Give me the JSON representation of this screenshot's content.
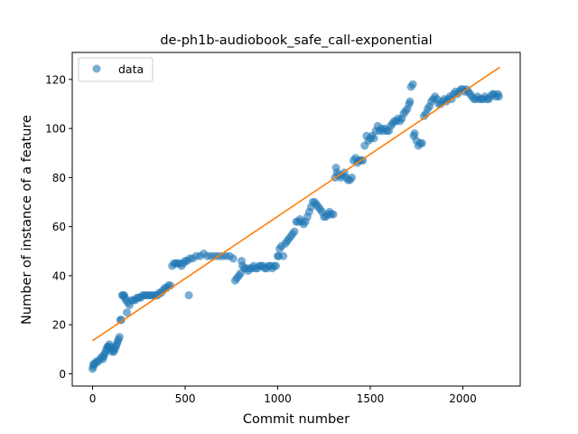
{
  "chart_data": {
    "type": "scatter",
    "title": "de-ph1b-audiobook_safe_call-exponential",
    "xlabel": "Commit number",
    "ylabel": "Number of instance of a feature",
    "xlim": [
      -110,
      2310
    ],
    "ylim": [
      -5,
      131
    ],
    "xticks": [
      0,
      500,
      1000,
      1500,
      2000
    ],
    "yticks": [
      0,
      20,
      40,
      60,
      80,
      100,
      120
    ],
    "grid": false,
    "legend": {
      "position": "upper-left",
      "entries": [
        "data"
      ]
    },
    "series": [
      {
        "name": "data",
        "kind": "scatter",
        "color": "#1f77b4",
        "points": [
          [
            0,
            2
          ],
          [
            3,
            3
          ],
          [
            5,
            4
          ],
          [
            12,
            4
          ],
          [
            20,
            5
          ],
          [
            30,
            5
          ],
          [
            40,
            6
          ],
          [
            50,
            7
          ],
          [
            55,
            6
          ],
          [
            60,
            7
          ],
          [
            65,
            8
          ],
          [
            70,
            9
          ],
          [
            75,
            10
          ],
          [
            80,
            11
          ],
          [
            85,
            11
          ],
          [
            90,
            12
          ],
          [
            95,
            11
          ],
          [
            100,
            10
          ],
          [
            105,
            9
          ],
          [
            110,
            10
          ],
          [
            115,
            9
          ],
          [
            120,
            10
          ],
          [
            125,
            11
          ],
          [
            130,
            12
          ],
          [
            135,
            13
          ],
          [
            140,
            14
          ],
          [
            145,
            15
          ],
          [
            150,
            22
          ],
          [
            155,
            22
          ],
          [
            160,
            32
          ],
          [
            165,
            32
          ],
          [
            170,
            32
          ],
          [
            175,
            31
          ],
          [
            180,
            30
          ],
          [
            185,
            25
          ],
          [
            190,
            29
          ],
          [
            200,
            28
          ],
          [
            210,
            30
          ],
          [
            220,
            30
          ],
          [
            230,
            30
          ],
          [
            240,
            31
          ],
          [
            250,
            31
          ],
          [
            260,
            31
          ],
          [
            270,
            32
          ],
          [
            280,
            32
          ],
          [
            290,
            32
          ],
          [
            300,
            32
          ],
          [
            310,
            32
          ],
          [
            320,
            32
          ],
          [
            330,
            32
          ],
          [
            340,
            32
          ],
          [
            350,
            32
          ],
          [
            360,
            33
          ],
          [
            370,
            33
          ],
          [
            380,
            34
          ],
          [
            390,
            35
          ],
          [
            400,
            35
          ],
          [
            410,
            36
          ],
          [
            420,
            36
          ],
          [
            430,
            44
          ],
          [
            440,
            45
          ],
          [
            450,
            45
          ],
          [
            460,
            45
          ],
          [
            470,
            45
          ],
          [
            480,
            44
          ],
          [
            490,
            45
          ],
          [
            500,
            46
          ],
          [
            510,
            46
          ],
          [
            520,
            32
          ],
          [
            525,
            47
          ],
          [
            540,
            47
          ],
          [
            560,
            48
          ],
          [
            580,
            48
          ],
          [
            600,
            49
          ],
          [
            620,
            48
          ],
          [
            640,
            48
          ],
          [
            660,
            48
          ],
          [
            680,
            48
          ],
          [
            700,
            48
          ],
          [
            720,
            48
          ],
          [
            740,
            48
          ],
          [
            760,
            47
          ],
          [
            770,
            38
          ],
          [
            780,
            39
          ],
          [
            790,
            40
          ],
          [
            800,
            41
          ],
          [
            805,
            46
          ],
          [
            810,
            44
          ],
          [
            820,
            43
          ],
          [
            830,
            43
          ],
          [
            840,
            42
          ],
          [
            850,
            43
          ],
          [
            860,
            43
          ],
          [
            870,
            44
          ],
          [
            880,
            43
          ],
          [
            890,
            43
          ],
          [
            900,
            44
          ],
          [
            910,
            44
          ],
          [
            920,
            44
          ],
          [
            930,
            43
          ],
          [
            940,
            43
          ],
          [
            950,
            44
          ],
          [
            960,
            44
          ],
          [
            970,
            43
          ],
          [
            980,
            44
          ],
          [
            990,
            44
          ],
          [
            1000,
            48
          ],
          [
            1005,
            48
          ],
          [
            1010,
            51
          ],
          [
            1020,
            52
          ],
          [
            1030,
            48
          ],
          [
            1040,
            53
          ],
          [
            1050,
            54
          ],
          [
            1060,
            55
          ],
          [
            1070,
            56
          ],
          [
            1080,
            57
          ],
          [
            1090,
            58
          ],
          [
            1100,
            62
          ],
          [
            1110,
            62
          ],
          [
            1120,
            63
          ],
          [
            1130,
            62
          ],
          [
            1140,
            61
          ],
          [
            1150,
            62
          ],
          [
            1160,
            64
          ],
          [
            1170,
            66
          ],
          [
            1180,
            68
          ],
          [
            1190,
            70
          ],
          [
            1200,
            70
          ],
          [
            1210,
            69
          ],
          [
            1220,
            68
          ],
          [
            1230,
            67
          ],
          [
            1240,
            66
          ],
          [
            1250,
            64
          ],
          [
            1260,
            64
          ],
          [
            1270,
            65
          ],
          [
            1280,
            66
          ],
          [
            1290,
            65
          ],
          [
            1300,
            65
          ],
          [
            1310,
            80
          ],
          [
            1315,
            84
          ],
          [
            1320,
            82
          ],
          [
            1330,
            81
          ],
          [
            1340,
            80
          ],
          [
            1350,
            81
          ],
          [
            1360,
            82
          ],
          [
            1370,
            80
          ],
          [
            1380,
            79
          ],
          [
            1390,
            79
          ],
          [
            1400,
            80
          ],
          [
            1410,
            87
          ],
          [
            1420,
            88
          ],
          [
            1430,
            86
          ],
          [
            1440,
            87
          ],
          [
            1450,
            87
          ],
          [
            1460,
            87
          ],
          [
            1470,
            93
          ],
          [
            1480,
            97
          ],
          [
            1490,
            95
          ],
          [
            1500,
            96
          ],
          [
            1510,
            97
          ],
          [
            1520,
            96
          ],
          [
            1530,
            99
          ],
          [
            1540,
            101
          ],
          [
            1550,
            99
          ],
          [
            1560,
            100
          ],
          [
            1570,
            99
          ],
          [
            1580,
            100
          ],
          [
            1590,
            99
          ],
          [
            1600,
            99
          ],
          [
            1610,
            101
          ],
          [
            1620,
            102
          ],
          [
            1630,
            103
          ],
          [
            1640,
            103
          ],
          [
            1650,
            104
          ],
          [
            1660,
            103
          ],
          [
            1670,
            104
          ],
          [
            1680,
            106
          ],
          [
            1690,
            107
          ],
          [
            1700,
            108
          ],
          [
            1710,
            110
          ],
          [
            1715,
            111
          ],
          [
            1720,
            117
          ],
          [
            1730,
            118
          ],
          [
            1735,
            97
          ],
          [
            1740,
            98
          ],
          [
            1750,
            95
          ],
          [
            1760,
            93
          ],
          [
            1770,
            94
          ],
          [
            1780,
            94
          ],
          [
            1790,
            105
          ],
          [
            1800,
            106
          ],
          [
            1810,
            108
          ],
          [
            1820,
            109
          ],
          [
            1830,
            111
          ],
          [
            1840,
            112
          ],
          [
            1850,
            113
          ],
          [
            1860,
            112
          ],
          [
            1870,
            110
          ],
          [
            1880,
            110
          ],
          [
            1890,
            111
          ],
          [
            1900,
            112
          ],
          [
            1910,
            111
          ],
          [
            1920,
            112
          ],
          [
            1930,
            113
          ],
          [
            1940,
            112
          ],
          [
            1950,
            114
          ],
          [
            1960,
            115
          ],
          [
            1970,
            114
          ],
          [
            1980,
            115
          ],
          [
            1990,
            116
          ],
          [
            2000,
            116
          ],
          [
            2010,
            115
          ],
          [
            2020,
            116
          ],
          [
            2030,
            115
          ],
          [
            2040,
            114
          ],
          [
            2050,
            113
          ],
          [
            2060,
            112
          ],
          [
            2070,
            112
          ],
          [
            2080,
            113
          ],
          [
            2090,
            112
          ],
          [
            2100,
            112
          ],
          [
            2110,
            112
          ],
          [
            2120,
            113
          ],
          [
            2130,
            112
          ],
          [
            2140,
            112
          ],
          [
            2150,
            113
          ],
          [
            2160,
            114
          ],
          [
            2170,
            114
          ],
          [
            2180,
            113
          ],
          [
            2190,
            114
          ],
          [
            2195,
            113
          ]
        ]
      },
      {
        "name": "",
        "kind": "line",
        "color": "#ff7f0e",
        "x": [
          0,
          2200
        ],
        "y": [
          13.5,
          125
        ]
      }
    ]
  }
}
